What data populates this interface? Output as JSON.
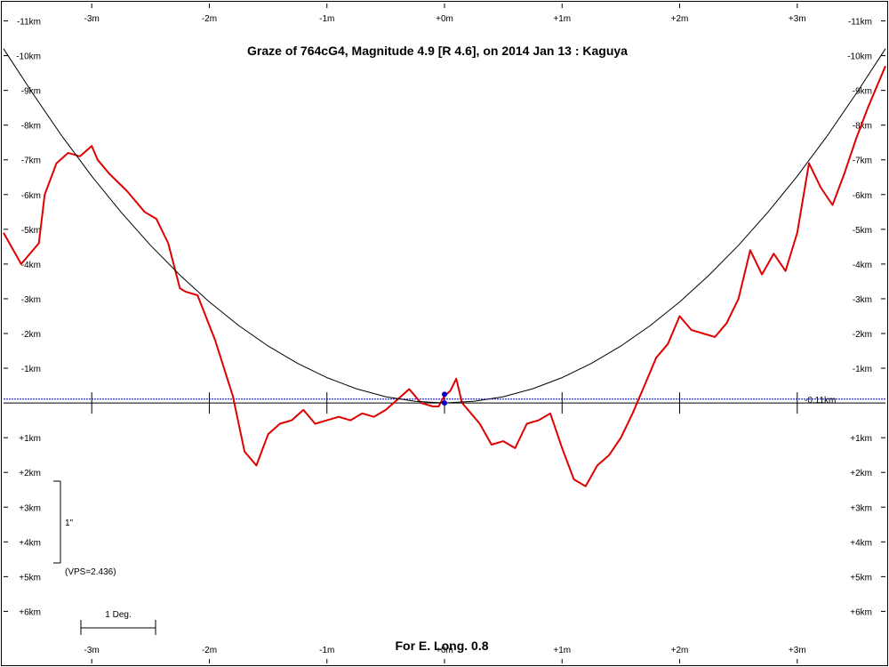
{
  "chart_data": {
    "type": "line",
    "title": "Graze of  764cG4,  Magnitude 4.9 [R 4.6],  on 2014 Jan 13  :  Kaguya",
    "footer": "For E. Long. 0.8",
    "x_unit": "m",
    "y_unit": "km",
    "x_ticks": [
      "-3m",
      "-2m",
      "-1m",
      "+0m",
      "+1m",
      "+2m",
      "+3m"
    ],
    "x_tick_values": [
      -3,
      -2,
      -1,
      0,
      1,
      2,
      3
    ],
    "y_ticks": [
      "-11km",
      "-10km",
      "-9km",
      "-8km",
      "-7km",
      "-6km",
      "-5km",
      "-4km",
      "-3km",
      "-2km",
      "-1km",
      "+1km",
      "+2km",
      "+3km",
      "+4km",
      "+5km",
      "+6km"
    ],
    "y_tick_values": [
      -11,
      -10,
      -9,
      -8,
      -7,
      -6,
      -5,
      -4,
      -3,
      -2,
      -1,
      1,
      2,
      3,
      4,
      5,
      6
    ],
    "xlim": [
      -3.75,
      3.75
    ],
    "ylim": [
      -11.5,
      7.5
    ],
    "reference_line": {
      "label": "-0.11km",
      "y": -0.11,
      "color": "#0000cc"
    },
    "scale_bar": {
      "label": "1\"",
      "vps_label": "(VPS=2.436)"
    },
    "degree_bar": {
      "label": "1 Deg."
    },
    "series": [
      {
        "kind": "limb-profile",
        "color": "#e00000",
        "x": [
          -3.75,
          -3.6,
          -3.45,
          -3.4,
          -3.3,
          -3.2,
          -3.1,
          -3.0,
          -2.95,
          -2.85,
          -2.7,
          -2.55,
          -2.45,
          -2.35,
          -2.25,
          -2.2,
          -2.1,
          -1.95,
          -1.8,
          -1.7,
          -1.6,
          -1.5,
          -1.4,
          -1.3,
          -1.2,
          -1.1,
          -1.0,
          -0.9,
          -0.8,
          -0.7,
          -0.6,
          -0.5,
          -0.4,
          -0.3,
          -0.25,
          -0.2,
          -0.15,
          -0.1,
          -0.05,
          0.0,
          0.05,
          0.1,
          0.15,
          0.2,
          0.3,
          0.4,
          0.5,
          0.6,
          0.7,
          0.8,
          0.9,
          1.0,
          1.1,
          1.2,
          1.3,
          1.4,
          1.5,
          1.6,
          1.7,
          1.8,
          1.9,
          2.0,
          2.1,
          2.2,
          2.3,
          2.4,
          2.5,
          2.6,
          2.7,
          2.8,
          2.9,
          3.0,
          3.1,
          3.2,
          3.3,
          3.4,
          3.5,
          3.6,
          3.7,
          3.75
        ],
        "y": [
          -4.9,
          -4.0,
          -4.6,
          -6.0,
          -6.9,
          -7.2,
          -7.1,
          -7.4,
          -7.0,
          -6.6,
          -6.1,
          -5.5,
          -5.3,
          -4.6,
          -3.3,
          -3.2,
          -3.1,
          -1.8,
          -0.2,
          1.4,
          1.8,
          0.9,
          0.6,
          0.5,
          0.2,
          0.6,
          0.5,
          0.4,
          0.5,
          0.3,
          0.4,
          0.2,
          -0.1,
          -0.4,
          -0.2,
          0.0,
          0.05,
          0.1,
          0.1,
          -0.2,
          -0.35,
          -0.7,
          0.0,
          0.2,
          0.6,
          1.2,
          1.1,
          1.3,
          0.6,
          0.5,
          0.3,
          1.3,
          2.2,
          2.4,
          1.8,
          1.5,
          1.0,
          0.3,
          -0.5,
          -1.3,
          -1.7,
          -2.5,
          -2.1,
          -2.0,
          -1.9,
          -2.3,
          -3.0,
          -4.4,
          -3.7,
          -4.3,
          -3.8,
          -4.9,
          -6.9,
          -6.2,
          -5.7,
          -6.6,
          -7.6,
          -8.5,
          -9.3,
          -9.7
        ]
      },
      {
        "kind": "graze-curve",
        "color": "#000000",
        "x": [
          -3.75,
          -3.5,
          -3.25,
          -3.0,
          -2.75,
          -2.5,
          -2.25,
          -2.0,
          -1.75,
          -1.5,
          -1.25,
          -1.0,
          -0.75,
          -0.5,
          -0.25,
          0.0,
          0.25,
          0.5,
          0.75,
          1.0,
          1.25,
          1.5,
          1.75,
          2.0,
          2.25,
          2.5,
          2.75,
          3.0,
          3.25,
          3.5,
          3.75
        ],
        "y": [
          -10.2,
          -8.9,
          -7.67,
          -6.53,
          -5.49,
          -4.54,
          -3.68,
          -2.91,
          -2.23,
          -1.64,
          -1.14,
          -0.73,
          -0.41,
          -0.18,
          -0.05,
          0.0,
          -0.05,
          -0.18,
          -0.41,
          -0.73,
          -1.14,
          -1.64,
          -2.23,
          -2.91,
          -3.68,
          -4.54,
          -5.49,
          -6.53,
          -7.67,
          -8.9,
          -10.2
        ]
      }
    ],
    "markers": [
      {
        "x": 0.0,
        "y": -0.25,
        "color": "#0000cc"
      },
      {
        "x": 0.0,
        "y": 0.0,
        "color": "#0000cc"
      }
    ]
  }
}
